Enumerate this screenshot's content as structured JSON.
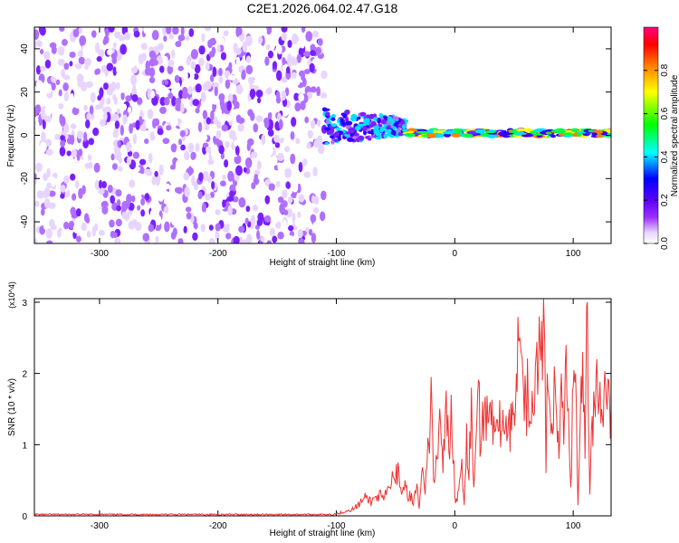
{
  "page": {
    "title": "C2E1.2026.064.02.47.G18"
  },
  "chart_data": [
    {
      "type": "heatmap",
      "title": "C2E1.2026.064.02.47.G18",
      "xlabel": "Height of straight line (km)",
      "ylabel": "Frequency (Hz)",
      "xlim": [
        -355,
        132
      ],
      "ylim": [
        -50,
        50
      ],
      "x_ticks": [
        -300,
        -200,
        -100,
        0,
        100
      ],
      "y_ticks": [
        -40,
        -20,
        0,
        20,
        40
      ],
      "colorbar": {
        "label": "Normalized spectral amplitude",
        "range": [
          0,
          1
        ],
        "ticks": [
          0.0,
          0.2,
          0.4,
          0.6,
          0.8
        ],
        "colors": [
          "#ffffff",
          "#e8d5ff",
          "#9b30ff",
          "#5b00ff",
          "#0000ff",
          "#00ffff",
          "#00ff00",
          "#ffff00",
          "#ff8000",
          "#ff0000",
          "#ff0080"
        ]
      },
      "regions": [
        {
          "x": [
            -355,
            -110
          ],
          "description_level": 0.12,
          "spread_hz": 50
        },
        {
          "x": [
            -110,
            -40
          ],
          "center_hz": 4,
          "spread_hz": 10,
          "peak": 0.55
        },
        {
          "x": [
            -40,
            132
          ],
          "center_hz": 1,
          "spread_hz": 3,
          "peak": 0.95
        }
      ]
    },
    {
      "type": "line",
      "xlabel": "Height of straight line (km)",
      "ylabel": "SNR (10 * v/v)",
      "y_multiplier": "(x10^4)",
      "xlim": [
        -355,
        132
      ],
      "ylim": [
        0,
        3.05
      ],
      "x_ticks": [
        -300,
        -200,
        -100,
        0,
        100
      ],
      "y_ticks": [
        0,
        1,
        2,
        3
      ],
      "color": "#ee3333",
      "x": [
        -355,
        -150,
        -110,
        -100,
        -95,
        -90,
        -85,
        -80,
        -75,
        -70,
        -65,
        -60,
        -55,
        -52,
        -50,
        -48,
        -45,
        -42,
        -40,
        -38,
        -35,
        -32,
        -30,
        -28,
        -25,
        -22,
        -20,
        -18,
        -15,
        -12,
        -10,
        -8,
        -5,
        -3,
        0,
        2,
        4,
        6,
        8,
        10,
        12,
        14,
        16,
        18,
        20,
        22,
        25,
        28,
        30,
        33,
        36,
        40,
        44,
        48,
        50,
        52,
        54,
        55,
        56,
        57,
        58,
        60,
        62,
        64,
        66,
        68,
        70,
        72,
        74,
        75,
        76,
        77,
        78,
        80,
        82,
        84,
        86,
        88,
        90,
        92,
        94,
        96,
        98,
        100,
        102,
        104,
        106,
        108,
        110,
        112,
        114,
        116,
        118,
        120,
        122,
        124,
        126,
        128,
        130,
        132
      ],
      "values": [
        0.02,
        0.02,
        0.02,
        0.03,
        0.05,
        0.08,
        0.1,
        0.18,
        0.25,
        0.2,
        0.3,
        0.22,
        0.4,
        0.55,
        0.45,
        0.75,
        0.3,
        0.5,
        0.25,
        0.35,
        0.15,
        0.45,
        0.1,
        0.6,
        0.3,
        1.0,
        1.95,
        0.5,
        0.8,
        1.3,
        0.6,
        1.5,
        0.9,
        1.7,
        0.3,
        0.2,
        0.5,
        0.8,
        0.15,
        1.3,
        0.5,
        1.8,
        0.4,
        1.1,
        1.9,
        0.9,
        1.5,
        1.3,
        1.6,
        1.4,
        1.35,
        1.2,
        1.05,
        1.2,
        1.45,
        2.0,
        2.45,
        2.5,
        2.3,
        2.2,
        1.8,
        1.7,
        1.65,
        1.3,
        1.45,
        2.1,
        1.7,
        2.4,
        1.9,
        3.05,
        2.4,
        0.6,
        2.0,
        1.6,
        1.3,
        2.1,
        1.4,
        0.8,
        2.0,
        1.0,
        2.4,
        1.5,
        0.4,
        1.8,
        2.0,
        0.15,
        1.4,
        2.3,
        0.8,
        3.0,
        0.3,
        1.4,
        1.55,
        2.2,
        1.6,
        1.5,
        1.75,
        1.6,
        1.9,
        1.55
      ]
    }
  ]
}
